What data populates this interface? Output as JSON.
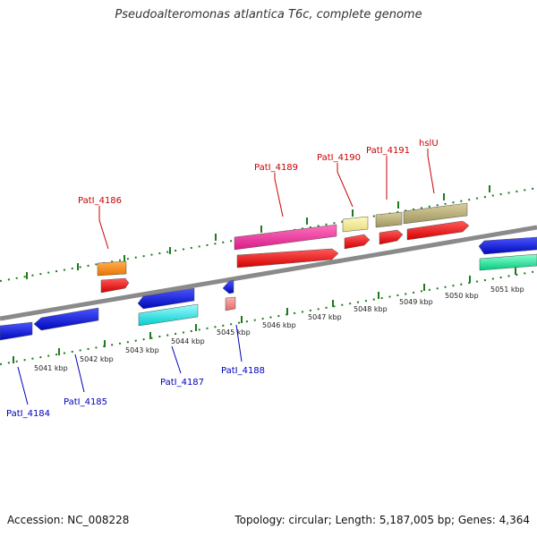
{
  "title": "Pseudoalteromonas atlantica T6c, complete genome",
  "footer": {
    "accession": "Accession: NC_008228",
    "topology": "Topology: circular; Length: 5,187,005 bp; Genes: 4,364"
  },
  "scale_labels": [
    "5041 kbp",
    "5042 kbp",
    "5043 kbp",
    "5044 kbp",
    "5045 kbp",
    "5046 kbp",
    "5047 kbp",
    "5048 kbp",
    "5049 kbp",
    "5050 kbp",
    "5051 kbp"
  ],
  "top_labels": [
    "PatI_4186",
    "PatI_4189",
    "PatI_4190",
    "PatI_4191",
    "hslU"
  ],
  "bottom_labels": [
    "PatI_4184",
    "PatI_4185",
    "PatI_4187",
    "PatI_4188"
  ],
  "colors": {
    "backbone": "#8a8a8a",
    "tick": "#1e7a1e",
    "red": "#ee0000",
    "pink": "#ee2f9c",
    "orange": "#ff8a00",
    "khaki": "#bdb27a",
    "paleyellow": "#f4ed9a",
    "blue": "#0b19e8",
    "cyan": "#00f0f0",
    "mint": "#1eeea0",
    "salmon": "#f08c8c",
    "label_top": "#cc0000",
    "label_bottom": "#0000bb"
  }
}
